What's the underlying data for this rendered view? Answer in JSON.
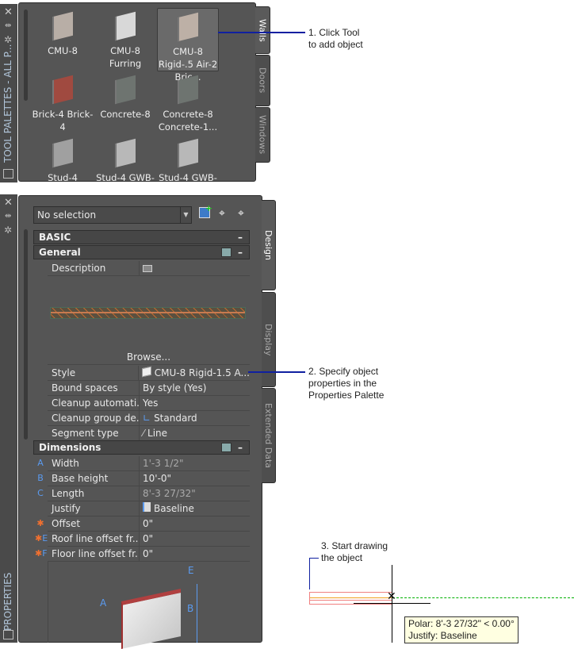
{
  "tool_palette": {
    "title": "TOOL PALETTES - ALL P...",
    "tabs": [
      {
        "label": "Walls",
        "active": true
      },
      {
        "label": "Doors"
      },
      {
        "label": "Windows"
      }
    ],
    "tools": [
      {
        "label": "CMU-8",
        "color": "#b8aea6"
      },
      {
        "label": "CMU-8 Furring",
        "color": "#d8d8d8"
      },
      {
        "label": "CMU-8 Rigid-.5 Air-2 Bric...",
        "color": "#bdb0a6",
        "selected": true
      },
      {
        "label": "Brick-4 Brick-4",
        "color": "#a04a40"
      },
      {
        "label": "Concrete-8",
        "color": "#6e7470"
      },
      {
        "label": "Concrete-8 Concrete-1...",
        "color": "#6e7470"
      },
      {
        "label": "Stud-4",
        "color": "#a0a0a0"
      },
      {
        "label": "Stud-4 GWB-",
        "color": "#b8b8b8"
      },
      {
        "label": "Stud-4 GWB-",
        "color": "#b8b8b8"
      }
    ]
  },
  "properties": {
    "title": "PROPERTIES",
    "selection": "No selection",
    "tabs": [
      {
        "label": "Design",
        "active": true
      },
      {
        "label": "Display"
      },
      {
        "label": "Extended Data"
      }
    ],
    "basic": "BASIC",
    "general": {
      "title": "General",
      "description_label": "Description",
      "browse": "Browse...",
      "rows": [
        {
          "label": "Style",
          "value": "CMU-8 Rigid-1.5 A...",
          "icon": "wall-style-icon"
        },
        {
          "label": "Bound spaces",
          "value": "By style (Yes)"
        },
        {
          "label": "Cleanup  automati...",
          "value": "Yes"
        },
        {
          "label": "Cleanup  group  de...",
          "value": "Standard",
          "icon": "cleanup-group-icon"
        },
        {
          "label": "Segment type",
          "value": "Line",
          "icon": "line-segment-icon"
        }
      ]
    },
    "dimensions": {
      "title": "Dimensions",
      "rows": [
        {
          "key": "A",
          "label": "Width",
          "value": "1'-3 1/2\"",
          "readonly": true
        },
        {
          "key": "B",
          "label": "Base height",
          "value": "10'-0\""
        },
        {
          "key": "C",
          "label": "Length",
          "value": "8'-3 27/32\"",
          "readonly": true
        },
        {
          "key": "",
          "label": "Justify",
          "value": "Baseline",
          "icon": "justify-icon"
        },
        {
          "key": "✱",
          "label": "Offset",
          "value": "0\""
        },
        {
          "key": "✱E",
          "label": "Roof line offset fr...",
          "value": "0\""
        },
        {
          "key": "✱F",
          "label": "Floor line offset fr...",
          "value": "0\""
        }
      ],
      "diagram_labels": {
        "a": "A",
        "b": "B",
        "e": "E"
      }
    }
  },
  "annotations": {
    "step1": [
      "1. Click Tool",
      "to add object"
    ],
    "step2": [
      "2. Specify object",
      "properties in the",
      "Properties Palette"
    ],
    "step3": [
      "3. Start drawing",
      "the object"
    ]
  },
  "tooltip": {
    "polar": "Polar: 8'-3 27/32\" < 0.00°",
    "justify": "Justify: Baseline"
  },
  "colors": {
    "accent_line": "#1020a0",
    "tooltip_bg": "#ffffe1",
    "polar_track": "#00b000",
    "wall_outline": "#f08080"
  }
}
